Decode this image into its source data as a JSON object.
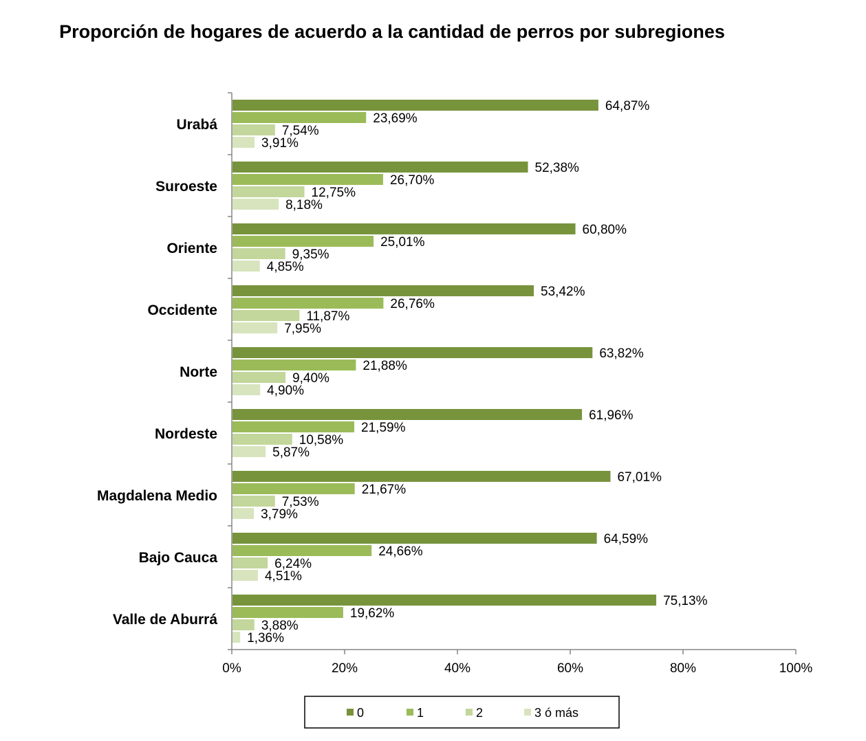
{
  "chart_data": {
    "type": "bar",
    "orientation": "horizontal",
    "title": "Proporción de hogares de acuerdo a la cantidad de perros por subregiones",
    "xlabel": "",
    "ylabel": "",
    "xlim": [
      0,
      100
    ],
    "x_ticks": [
      "0%",
      "20%",
      "40%",
      "60%",
      "80%",
      "100%"
    ],
    "grid": false,
    "legend_position": "bottom",
    "categories": [
      "Urabá",
      "Suroeste",
      "Oriente",
      "Occidente",
      "Norte",
      "Nordeste",
      "Magdalena Medio",
      "Bajo Cauca",
      "Valle de Aburrá"
    ],
    "series": [
      {
        "name": "0",
        "color": "#77933c",
        "values": [
          64.87,
          52.38,
          60.8,
          53.42,
          63.82,
          61.96,
          67.01,
          64.59,
          75.13
        ],
        "labels": [
          "64,87%",
          "52,38%",
          "60,80%",
          "53,42%",
          "63,82%",
          "61,96%",
          "67,01%",
          "64,59%",
          "75,13%"
        ]
      },
      {
        "name": "1",
        "color": "#9bbb59",
        "values": [
          23.69,
          26.7,
          25.01,
          26.76,
          21.88,
          21.59,
          21.67,
          24.66,
          19.62
        ],
        "labels": [
          "23,69%",
          "26,70%",
          "25,01%",
          "26,76%",
          "21,88%",
          "21,59%",
          "21,67%",
          "24,66%",
          "19,62%"
        ]
      },
      {
        "name": "2",
        "color": "#c3d69b",
        "values": [
          7.54,
          12.75,
          9.35,
          11.87,
          9.4,
          10.58,
          7.53,
          6.24,
          3.88
        ],
        "labels": [
          "7,54%",
          "12,75%",
          "9,35%",
          "11,87%",
          "9,40%",
          "10,58%",
          "7,53%",
          "6,24%",
          "3,88%"
        ]
      },
      {
        "name": "3 ó más",
        "color": "#d7e4bd",
        "values": [
          3.91,
          8.18,
          4.85,
          7.95,
          4.9,
          5.87,
          3.79,
          4.51,
          1.36
        ],
        "labels": [
          "3,91%",
          "8,18%",
          "4,85%",
          "7,95%",
          "4,90%",
          "5,87%",
          "3,79%",
          "4,51%",
          "1,36%"
        ]
      }
    ]
  }
}
